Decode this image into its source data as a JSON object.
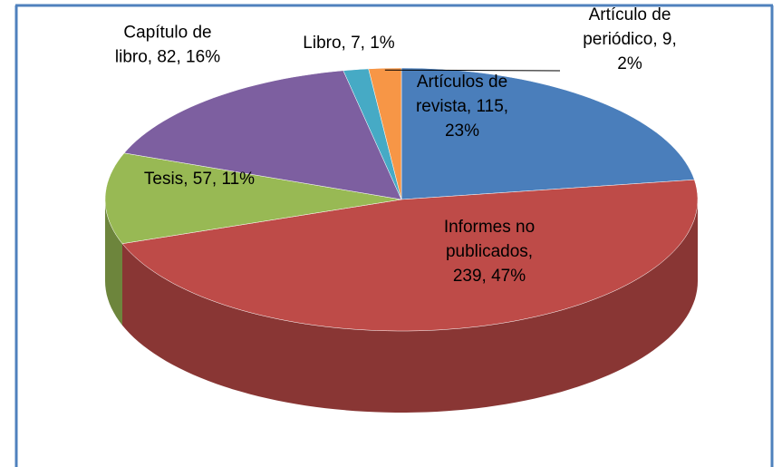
{
  "chart_data": {
    "type": "pie3d",
    "values": [
      115,
      239,
      57,
      82,
      7,
      9
    ],
    "value_labels": [
      "Artículos de revista, 115, 23%",
      "Informes no publicados, 239, 47%",
      "Tesis, 57, 11%",
      "Capítulo de libro, 82, 16%",
      "Libro, 7, 1%",
      "Artículo de periódico, 9, 2%"
    ],
    "colors": [
      "#4a7ebb",
      "#be4b48",
      "#98b954",
      "#7d5fa0",
      "#46aac5",
      "#f79646"
    ]
  }
}
